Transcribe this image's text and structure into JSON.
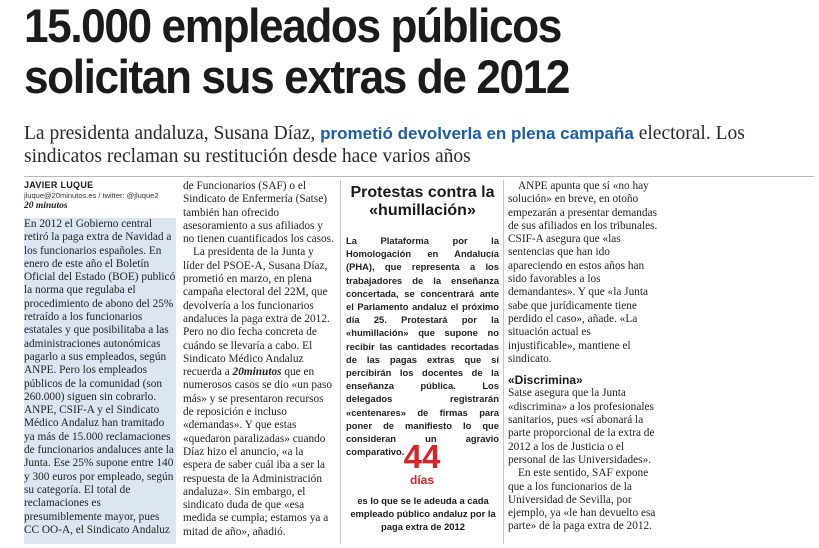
{
  "headline": {
    "line1": "15.000 empleados públicos",
    "line2": "solicitan sus extras de 2012"
  },
  "deck": {
    "part1": "La presidenta andaluza, Susana Díaz, ",
    "highlight": "prometió devolverla en plena campaña",
    "part2": " electoral. Los sindicatos reclaman su restitución desde hace varios años"
  },
  "byline": {
    "author": "JAVIER LUQUE",
    "contact": "jluque@20minutos.es / twitter: @jluque2",
    "paper": "20 minutos"
  },
  "col1": {
    "p1": "En 2012 el Gobierno central retiró la paga extra de Navidad a los funcionarios españoles. En enero de este año el Boletín Oficial del Estado (BOE) publicó la norma que regulaba el procedimiento de abono del 25% retraído a los funcionarios estatales y que posibilitaba a las administraciones autonómicas pagarlo a sus empleados, según ANPE. Pero los empleados públicos de la comunidad (son 260.000) siguen sin cobrarlo. ANPE, CSIF-A y el Sindicato Médico Andaluz han tramitado ya más de 15.000 reclamaciones de funcionarios andaluces ante la Junta. Ese 25% supone entre 140 y 300 euros por empleado, según su categoría. El total de reclamaciones es presumiblemente mayor, pues CC OO-A, el Sindicato Andaluz"
  },
  "col2": {
    "p1": "de Funcionarios (SAF) o el Sindicato de Enfermería (Satse) también han ofrecido asesoramiento a sus afiliados y no tienen cuantificados los casos.",
    "p2": "La presidenta de la Junta y líder del PSOE-A, Susana Díaz, prometió en marzo, en plena campaña electoral del 22M, que devolvería a los funcionarios andaluces la paga extra de 2012. Pero no dio fecha concreta de cuándo se llevaría a cabo. El Sindicato Médico Andaluz recuerda a ",
    "p2_em": "20minutos",
    "p2b": " que en numerosos casos se dio «un paso más» y se presentaron recursos de reposición e incluso «demandas». Y que estas «quedaron paralizadas» cuando Díaz hizo el anuncio, «a la espera de saber cuál iba a ser la respuesta de la Administración andaluza». Sin embargo, el sindicato duda de que «esa medida se cumpla; estamos ya a mitad de año», añadió."
  },
  "sidebar": {
    "title": "Protestas contra la «humillación»",
    "text": "La Plataforma por la Homologación en Andalucía (PHA), que representa a los trabajadores de la enseñanza concertada, se concentrará ante el Parlamento andaluz el próximo día 25. Protestará por la «humillación» que supone no recibir las cantidades recortadas de las pagas extras que sí percibirán los docentes de la enseñanza pública. Los delegados registrarán «centenares» de firmas para poner de manifiesto lo que consideran un agravio comparativo."
  },
  "stat": {
    "number": "44",
    "unit": "días",
    "caption": "es lo que se le adeuda a cada empleado público andaluz por la paga extra de 2012"
  },
  "col4": {
    "p1": "ANPE apunta que sí «no hay solución» en breve, en otoño empezarán a presentar demandas de sus afiliados en los tribunales. CSIF-A asegura que «las sentencias que han ido apareciendo en estos años han sido favorables a los demandantes». Y que «la Junta sabe que jurídicamente tiene perdido el caso», añade. «La situación actual es injustificable», mantiene el sindicato.",
    "subhead": "«Discrimina»",
    "p2": "Satse asegura que la Junta «discrimina» a los profesionales sanitarios, pues «sí abonará la parte proporcional de la extra de 2012 a los de Justicia o el personal de las Universidades».",
    "p3": "En este sentido, SAF expone que a los funcionarios de la Universidad de Sevilla, por ejemplo, ya «le han devuelto esa parte» de la paga extra de 2012."
  }
}
